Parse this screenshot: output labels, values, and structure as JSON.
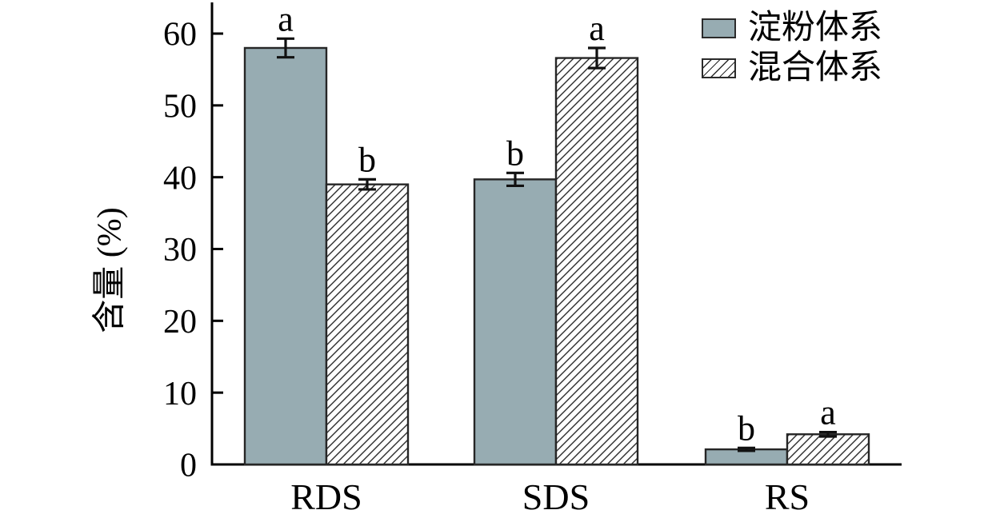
{
  "chart_data": {
    "type": "bar",
    "title": "",
    "ylabel": "含量 (%)",
    "xlabel": "",
    "categories": [
      "RDS",
      "SDS",
      "RS"
    ],
    "series": [
      {
        "name": "淀粉体系",
        "key": "starch",
        "pattern": "solid",
        "color": "#97ACB2",
        "values": [
          58.0,
          39.7,
          2.1
        ],
        "errors": [
          1.3,
          0.9,
          0.2
        ],
        "sig_letters": [
          "a",
          "b",
          "b"
        ]
      },
      {
        "name": "混合体系",
        "key": "mixed",
        "pattern": "diagonal-hatch",
        "color": "#FFFFFF",
        "hatch_color": "#2B2B2B",
        "values": [
          39.0,
          56.6,
          4.2
        ],
        "errors": [
          0.7,
          1.4,
          0.3
        ],
        "sig_letters": [
          "b",
          "a",
          "a"
        ]
      }
    ],
    "yticks": [
      0,
      10,
      20,
      30,
      40,
      50,
      60
    ],
    "ylim": [
      0,
      64
    ],
    "grid": false,
    "error_bars": true,
    "legend_position": "top-right",
    "axis_color": "#000000",
    "bar_edge_color": "#262626"
  }
}
